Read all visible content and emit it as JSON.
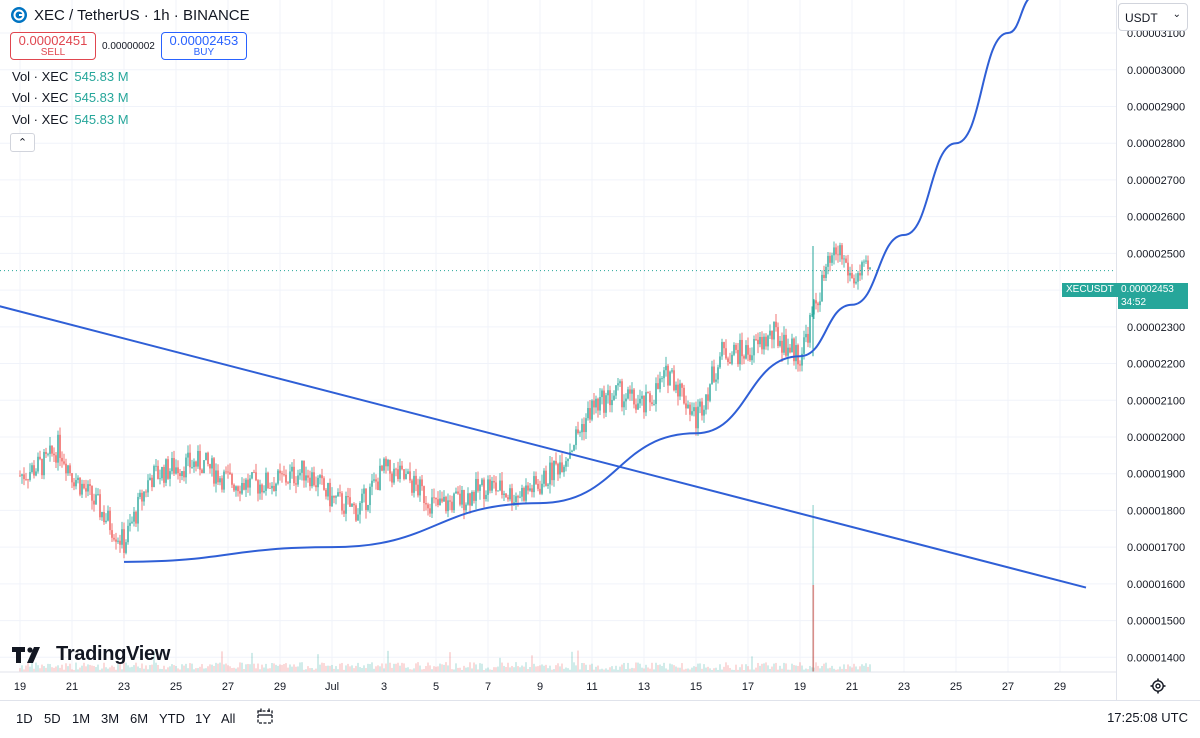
{
  "header": {
    "symbol_title": "XEC / TetherUS · 1h · BINANCE",
    "sell_price": "0.00002451",
    "sell_label": "SELL",
    "spread": "0.00000002",
    "buy_price": "0.00002453",
    "buy_label": "BUY",
    "volume_rows": [
      {
        "label": "Vol · XEC",
        "value": "545.83 M"
      },
      {
        "label": "Vol · XEC",
        "value": "545.83 M"
      },
      {
        "label": "Vol · XEC",
        "value": "545.83 M"
      }
    ],
    "collapse_icon": "chevron-up-icon"
  },
  "branding": {
    "logo_text": "TradingView"
  },
  "price_axis": {
    "currency": "USDT"
  },
  "last_price": {
    "ticker": "XECUSDT",
    "price": "0.00002453",
    "countdown": "34:52",
    "color": "#26a69a"
  },
  "bottom_bar": {
    "ranges": [
      "1D",
      "5D",
      "1M",
      "3M",
      "6M",
      "YTD",
      "1Y",
      "All"
    ],
    "clock": "17:25:08 UTC"
  },
  "colors": {
    "up": "#26a69a",
    "down": "#ef5350",
    "drawing": "#2f5fd6",
    "grid": "#f0f3fa"
  },
  "chart_data": {
    "type": "candlestick",
    "y_ticks": [
      "0.00001400",
      "0.00001500",
      "0.00001600",
      "0.00001700",
      "0.00001800",
      "0.00001900",
      "0.00002000",
      "0.00002100",
      "0.00002200",
      "0.00002300",
      "0.00002400",
      "0.00002500",
      "0.00002600",
      "0.00002700",
      "0.00002800",
      "0.00002900",
      "0.00003000",
      "0.00003100"
    ],
    "x_ticks": [
      "19",
      "21",
      "23",
      "25",
      "27",
      "29",
      "Jul",
      "3",
      "5",
      "7",
      "9",
      "11",
      "13",
      "15",
      "17",
      "19",
      "21",
      "23",
      "25",
      "27",
      "29"
    ],
    "ylim": [
      1.36e-05,
      3.19e-05
    ],
    "price_path": [
      {
        "x": "Jun 19",
        "y": 1.895e-05
      },
      {
        "x": "Jun 20",
        "y": 1.93e-05
      },
      {
        "x": "Jun 20 12:00",
        "y": 1.975e-05
      },
      {
        "x": "Jun 21",
        "y": 1.9e-05
      },
      {
        "x": "Jun 22",
        "y": 1.81e-05
      },
      {
        "x": "Jun 23",
        "y": 1.71e-05
      },
      {
        "x": "Jun 24",
        "y": 1.89e-05
      },
      {
        "x": "Jun 25",
        "y": 1.92e-05
      },
      {
        "x": "Jun 26",
        "y": 1.93e-05
      },
      {
        "x": "Jun 27",
        "y": 1.88e-05
      },
      {
        "x": "Jun 28",
        "y": 1.87e-05
      },
      {
        "x": "Jun 29",
        "y": 1.88e-05
      },
      {
        "x": "Jun 30",
        "y": 1.91e-05
      },
      {
        "x": "Jul 1",
        "y": 1.83e-05
      },
      {
        "x": "Jul 2",
        "y": 1.8e-05
      },
      {
        "x": "Jul 3",
        "y": 1.91e-05
      },
      {
        "x": "Jul 4",
        "y": 1.88e-05
      },
      {
        "x": "Jul 5",
        "y": 1.81e-05
      },
      {
        "x": "Jul 6",
        "y": 1.83e-05
      },
      {
        "x": "Jul 7",
        "y": 1.87e-05
      },
      {
        "x": "Jul 8",
        "y": 1.84e-05
      },
      {
        "x": "Jul 9",
        "y": 1.87e-05
      },
      {
        "x": "Jul 10",
        "y": 1.95e-05
      },
      {
        "x": "Jul 11",
        "y": 2.08e-05
      },
      {
        "x": "Jul 12",
        "y": 2.12e-05
      },
      {
        "x": "Jul 13",
        "y": 2.08e-05
      },
      {
        "x": "Jul 14",
        "y": 2.18e-05
      },
      {
        "x": "Jul 15",
        "y": 2.05e-05
      },
      {
        "x": "Jul 16",
        "y": 2.23e-05
      },
      {
        "x": "Jul 17",
        "y": 2.23e-05
      },
      {
        "x": "Jul 18",
        "y": 2.28e-05
      },
      {
        "x": "Jul 19",
        "y": 2.22e-05
      },
      {
        "x": "Jul 20",
        "y": 2.45e-05
      },
      {
        "x": "Jul 20 12:00",
        "y": 2.51e-05
      },
      {
        "x": "Jul 21",
        "y": 2.43e-05
      },
      {
        "x": "Jul 21 17:00",
        "y": 2.453e-05
      }
    ],
    "drawings": {
      "descending_line": [
        {
          "x": "Jun 18",
          "y": 2.36e-05
        },
        {
          "x": "Jul 30",
          "y": 1.59e-05
        }
      ],
      "parabolic_curve": [
        {
          "x": "Jun 23",
          "y": 1.66e-05
        },
        {
          "x": "Jul 1",
          "y": 1.7e-05
        },
        {
          "x": "Jul 9",
          "y": 1.82e-05
        },
        {
          "x": "Jul 15",
          "y": 2.01e-05
        },
        {
          "x": "Jul 19",
          "y": 2.22e-05
        },
        {
          "x": "Jul 21",
          "y": 2.36e-05
        },
        {
          "x": "Jul 23",
          "y": 2.55e-05
        },
        {
          "x": "Jul 25",
          "y": 2.8e-05
        },
        {
          "x": "Jul 27",
          "y": 3.1e-05
        },
        {
          "x": "Jul 28",
          "y": 3.2e-05
        }
      ]
    }
  }
}
